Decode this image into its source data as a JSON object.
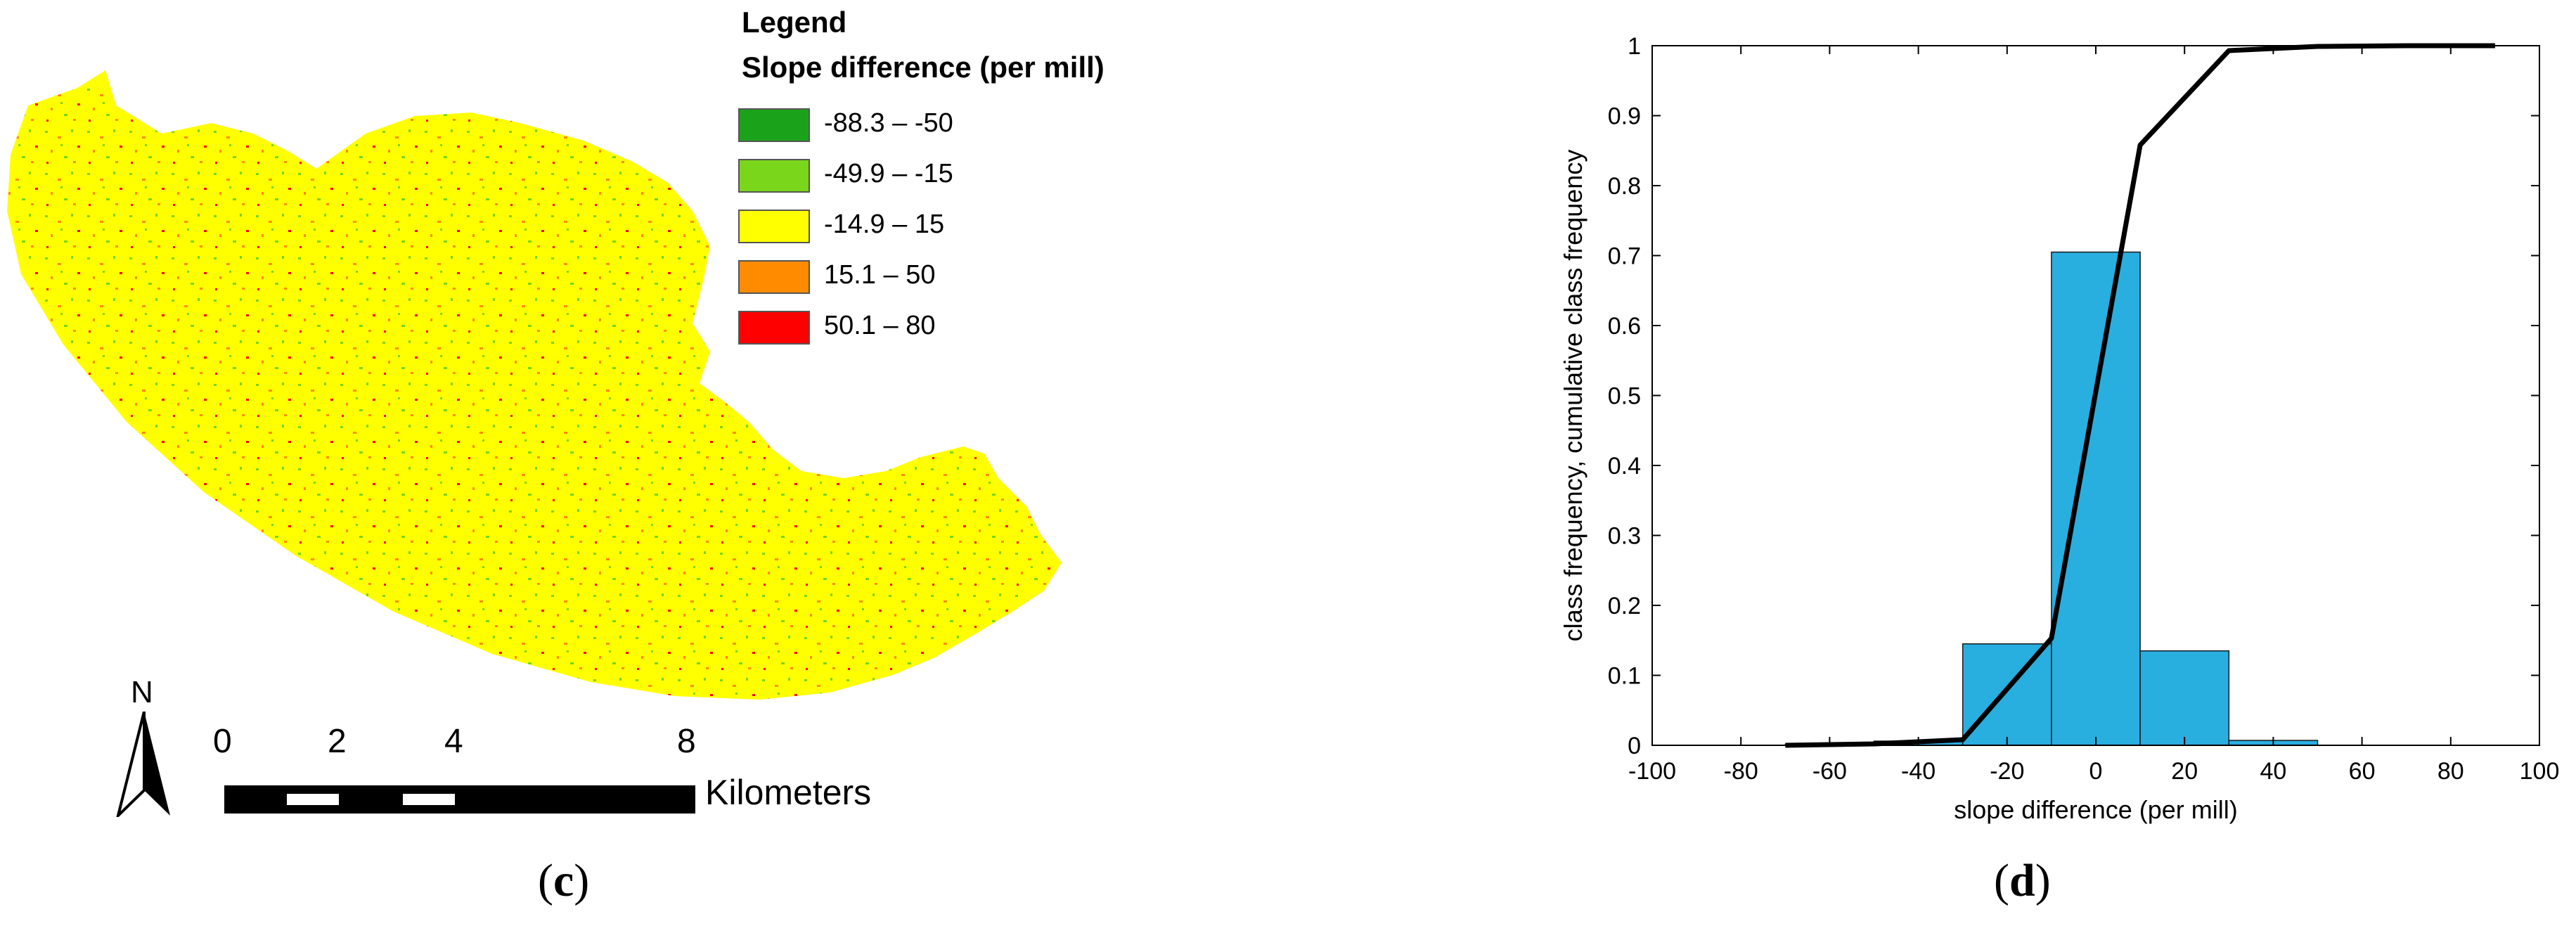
{
  "map": {
    "legend": {
      "title": "Legend",
      "subtitle": "Slope difference (per mill)",
      "items": [
        {
          "label": "-88.3 – -50",
          "color": "#1aa31a"
        },
        {
          "label": "-49.9 – -15",
          "color": "#7ad61a"
        },
        {
          "label": "-14.9 – 15",
          "color": "#ffff00"
        },
        {
          "label": "15.1 – 50",
          "color": "#ff8c00"
        },
        {
          "label": "50.1 – 80",
          "color": "#ff0000"
        }
      ]
    },
    "north_label": "N",
    "scale_bar": {
      "ticks": [
        "0",
        "2",
        "4",
        "8"
      ],
      "unit": "Kilometers"
    },
    "caption_open": "(",
    "caption_letter": "c",
    "caption_close": ")"
  },
  "chart_caption": {
    "open": "(",
    "letter": "d",
    "close": ")"
  },
  "chart_data": {
    "type": "bar",
    "xlabel": "slope difference (per mill)",
    "ylabel": "class frequency, cumulative class frequency",
    "xlim": [
      -100,
      100
    ],
    "ylim": [
      0,
      1
    ],
    "xticks": [
      -100,
      -80,
      -60,
      -40,
      -20,
      0,
      20,
      40,
      60,
      80,
      100
    ],
    "yticks": [
      0,
      0.1,
      0.2,
      0.3,
      0.4,
      0.5,
      0.6,
      0.7,
      0.8,
      0.9,
      1
    ],
    "grid": false,
    "bar_color": "#29aee0",
    "line_color": "#000000",
    "bars": [
      {
        "x0": -70,
        "x1": -50,
        "value": 0.001
      },
      {
        "x0": -50,
        "x1": -30,
        "value": 0.006
      },
      {
        "x0": -30,
        "x1": -10,
        "value": 0.145
      },
      {
        "x0": -10,
        "x1": 10,
        "value": 0.705
      },
      {
        "x0": 10,
        "x1": 30,
        "value": 0.135
      },
      {
        "x0": 30,
        "x1": 50,
        "value": 0.007
      }
    ],
    "cumulative": {
      "x": [
        -70,
        -50,
        -30,
        -10,
        10,
        30,
        50,
        70,
        90
      ],
      "y": [
        0.0,
        0.002,
        0.008,
        0.153,
        0.858,
        0.993,
        0.999,
        1.0,
        1.0
      ]
    }
  }
}
